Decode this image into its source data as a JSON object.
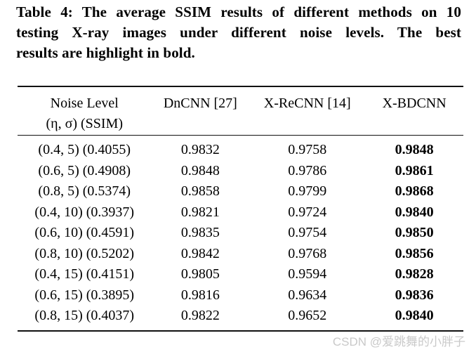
{
  "caption": {
    "lines": [
      "Table 4: The average SSIM results of different methods on 10",
      "testing X-ray images under different noise levels. The best",
      "results are highlight in bold."
    ]
  },
  "table": {
    "header": {
      "noise_line1": "Noise Level",
      "noise_line2": "(η, σ) (SSIM)",
      "dncnn": "DnCNN [27]",
      "xrecnn": "X-ReCNN [14]",
      "xbdcnn": "X-BDCNN"
    },
    "rows": [
      {
        "noise": "(0.4, 5) (0.4055)",
        "dncnn": "0.9832",
        "xrecnn": "0.9758",
        "xbdcnn": "0.9848"
      },
      {
        "noise": "(0.6, 5) (0.4908)",
        "dncnn": "0.9848",
        "xrecnn": "0.9786",
        "xbdcnn": "0.9861"
      },
      {
        "noise": "(0.8, 5) (0.5374)",
        "dncnn": "0.9858",
        "xrecnn": "0.9799",
        "xbdcnn": "0.9868"
      },
      {
        "noise": "(0.4, 10) (0.3937)",
        "dncnn": "0.9821",
        "xrecnn": "0.9724",
        "xbdcnn": "0.9840"
      },
      {
        "noise": "(0.6, 10) (0.4591)",
        "dncnn": "0.9835",
        "xrecnn": "0.9754",
        "xbdcnn": "0.9850"
      },
      {
        "noise": "(0.8, 10) (0.5202)",
        "dncnn": "0.9842",
        "xrecnn": "0.9768",
        "xbdcnn": "0.9856"
      },
      {
        "noise": "(0.4, 15) (0.4151)",
        "dncnn": "0.9805",
        "xrecnn": "0.9594",
        "xbdcnn": "0.9828"
      },
      {
        "noise": "(0.6, 15) (0.3895)",
        "dncnn": "0.9816",
        "xrecnn": "0.9634",
        "xbdcnn": "0.9836"
      },
      {
        "noise": "(0.8, 15) (0.4037)",
        "dncnn": "0.9822",
        "xrecnn": "0.9652",
        "xbdcnn": "0.9840"
      }
    ]
  },
  "watermark": {
    "text": "CSDN @爱跳舞的小胖子"
  },
  "colors": {
    "background": "#ffffff",
    "text": "#000000",
    "rule": "#111111",
    "watermark": "#c9c9c9"
  }
}
